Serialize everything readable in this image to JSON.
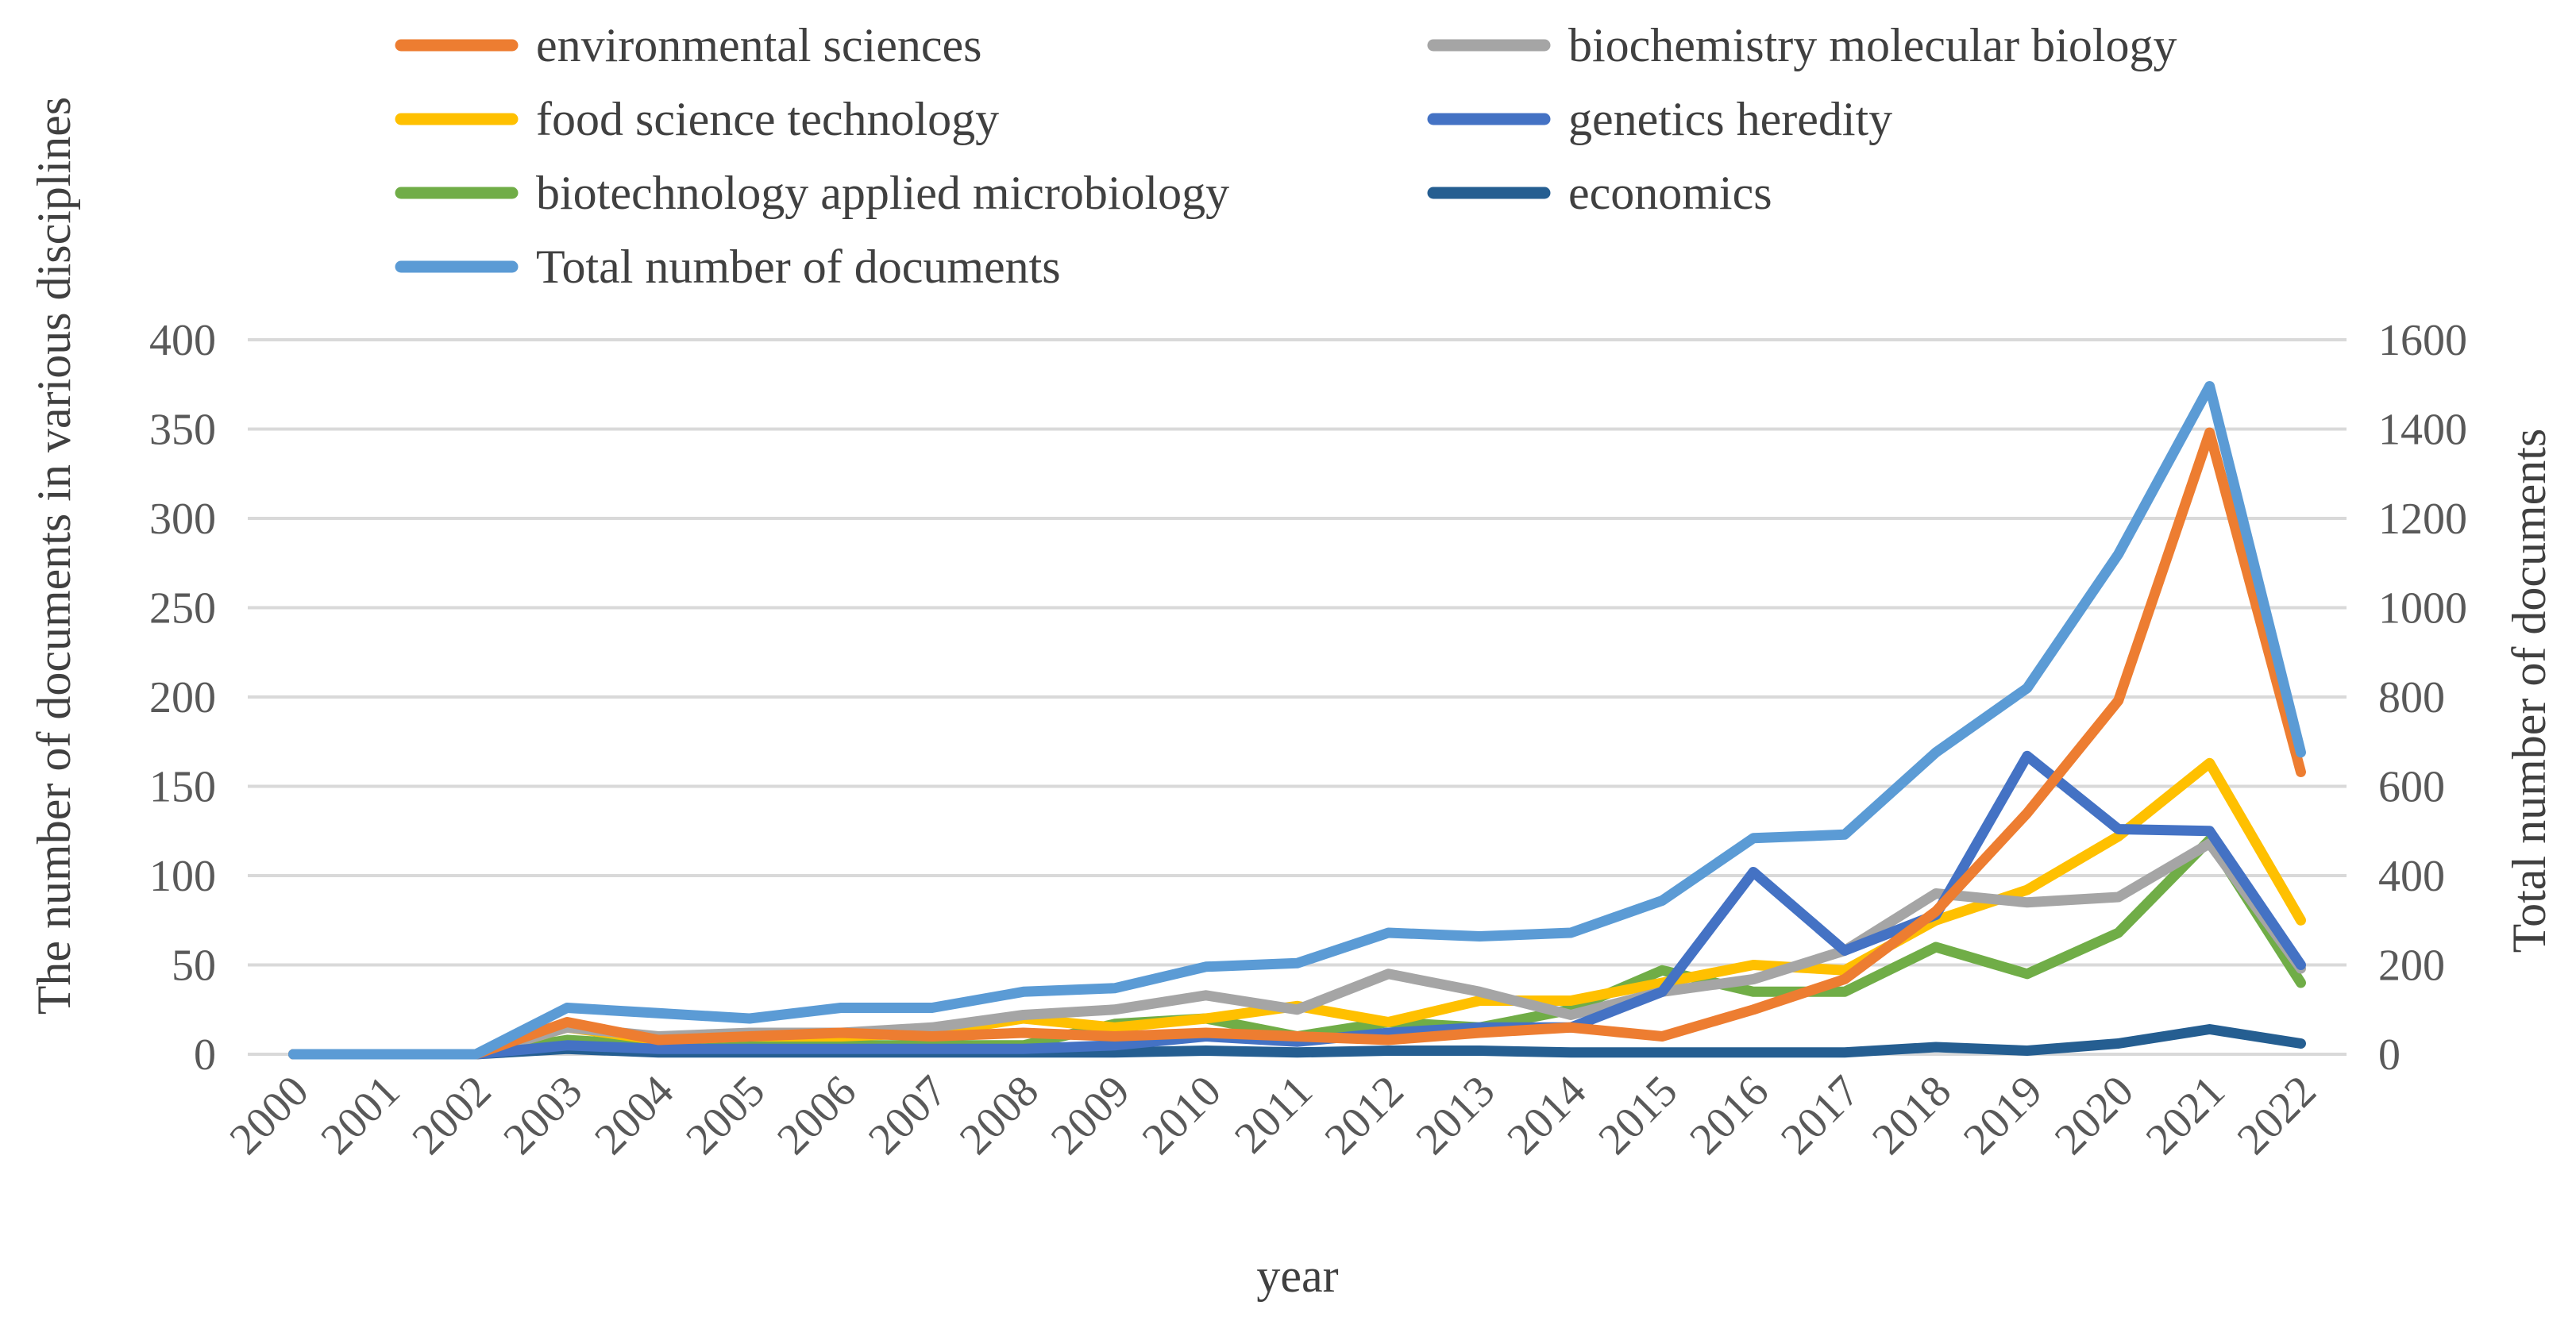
{
  "chart_data": {
    "type": "line",
    "title": "",
    "xlabel": "year",
    "ylabel": "The number of documents in various disciplines",
    "y2label": "Total number of documents",
    "ylim": [
      0,
      400
    ],
    "y2lim": [
      0,
      1600
    ],
    "yticks": [
      0,
      50,
      100,
      150,
      200,
      250,
      300,
      350,
      400
    ],
    "y2ticks": [
      0,
      200,
      400,
      600,
      800,
      1000,
      1200,
      1400,
      1600
    ],
    "grid": true,
    "legend_position": "top",
    "categories": [
      "2000",
      "2001",
      "2002",
      "2003",
      "2004",
      "2005",
      "2006",
      "2007",
      "2008",
      "2009",
      "2010",
      "2011",
      "2012",
      "2013",
      "2014",
      "2015",
      "2016",
      "2017",
      "2018",
      "2019",
      "2020",
      "2021",
      "2022"
    ],
    "series": [
      {
        "name": "environmental sciences",
        "color": "#ED7D31",
        "axis": "left",
        "values": [
          0,
          0,
          0,
          18,
          8,
          10,
          12,
          10,
          12,
          10,
          12,
          10,
          8,
          12,
          15,
          10,
          25,
          42,
          80,
          135,
          198,
          348,
          158
        ]
      },
      {
        "name": "biochemistry molecular biology",
        "color": "#A5A5A5",
        "axis": "left",
        "values": [
          0,
          0,
          0,
          15,
          10,
          12,
          12,
          15,
          22,
          25,
          33,
          25,
          45,
          35,
          22,
          35,
          42,
          58,
          90,
          85,
          88,
          118,
          48
        ]
      },
      {
        "name": "food science technology",
        "color": "#FFC000",
        "axis": "left",
        "values": [
          0,
          0,
          0,
          15,
          8,
          10,
          10,
          12,
          20,
          15,
          20,
          27,
          18,
          30,
          30,
          40,
          50,
          47,
          75,
          92,
          122,
          163,
          75
        ]
      },
      {
        "name": "genetics heredity",
        "color": "#4472C4",
        "axis": "left",
        "values": [
          0,
          0,
          0,
          5,
          3,
          3,
          3,
          3,
          3,
          5,
          10,
          7,
          12,
          15,
          15,
          35,
          102,
          58,
          78,
          167,
          126,
          125,
          50
        ]
      },
      {
        "name": "biotechnology applied microbiology",
        "color": "#70AD47",
        "axis": "left",
        "values": [
          0,
          0,
          0,
          8,
          5,
          5,
          5,
          5,
          5,
          17,
          20,
          10,
          18,
          15,
          25,
          47,
          35,
          35,
          60,
          45,
          68,
          120,
          40
        ]
      },
      {
        "name": "economics",
        "color": "#255E91",
        "axis": "left",
        "values": [
          0,
          0,
          0,
          3,
          1,
          1,
          1,
          1,
          1,
          1,
          2,
          1,
          2,
          2,
          1,
          1,
          1,
          1,
          4,
          2,
          6,
          14,
          6
        ]
      },
      {
        "name": "Total number of documents",
        "color": "#5B9BD5",
        "axis": "right",
        "values": [
          0,
          0,
          0,
          104,
          92,
          80,
          104,
          104,
          140,
          148,
          196,
          204,
          272,
          264,
          272,
          344,
          484,
          492,
          676,
          820,
          1120,
          1496,
          676
        ]
      }
    ]
  }
}
